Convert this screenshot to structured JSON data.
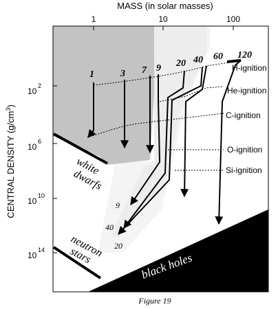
{
  "axes": {
    "top_label": "MASS (in solar masses)",
    "top_ticks": [
      "1",
      "10",
      "100"
    ],
    "left_label": "CENTRAL DENSITY (g/cm",
    "left_label_sup": "3",
    "left_label_close": ")",
    "left_ticks": [
      {
        "base": "10",
        "exp": "2"
      },
      {
        "base": "10",
        "exp": "6"
      },
      {
        "base": "10",
        "exp": "10"
      },
      {
        "base": "10",
        "exp": "14"
      }
    ]
  },
  "tracks": {
    "mass_labels": [
      "1",
      "3",
      "7",
      "9",
      "20",
      "40",
      "60",
      "120"
    ],
    "end_labels": [
      "9",
      "40",
      "20"
    ]
  },
  "ignition_labels": [
    "H-ignition",
    "He-ignition",
    "C-ignition",
    "O-ignition",
    "Si-ignition"
  ],
  "regions": {
    "white_dwarfs": [
      "white",
      "dwarfs"
    ],
    "neutron_stars": [
      "neutron",
      "stars"
    ],
    "black_holes": "black holes"
  },
  "caption": "Figure 19",
  "colors": {
    "dark_gray": "#c3c3c3",
    "light_gray": "#ededed",
    "lighter_gray": "#f4f4f4",
    "black": "#000000"
  }
}
